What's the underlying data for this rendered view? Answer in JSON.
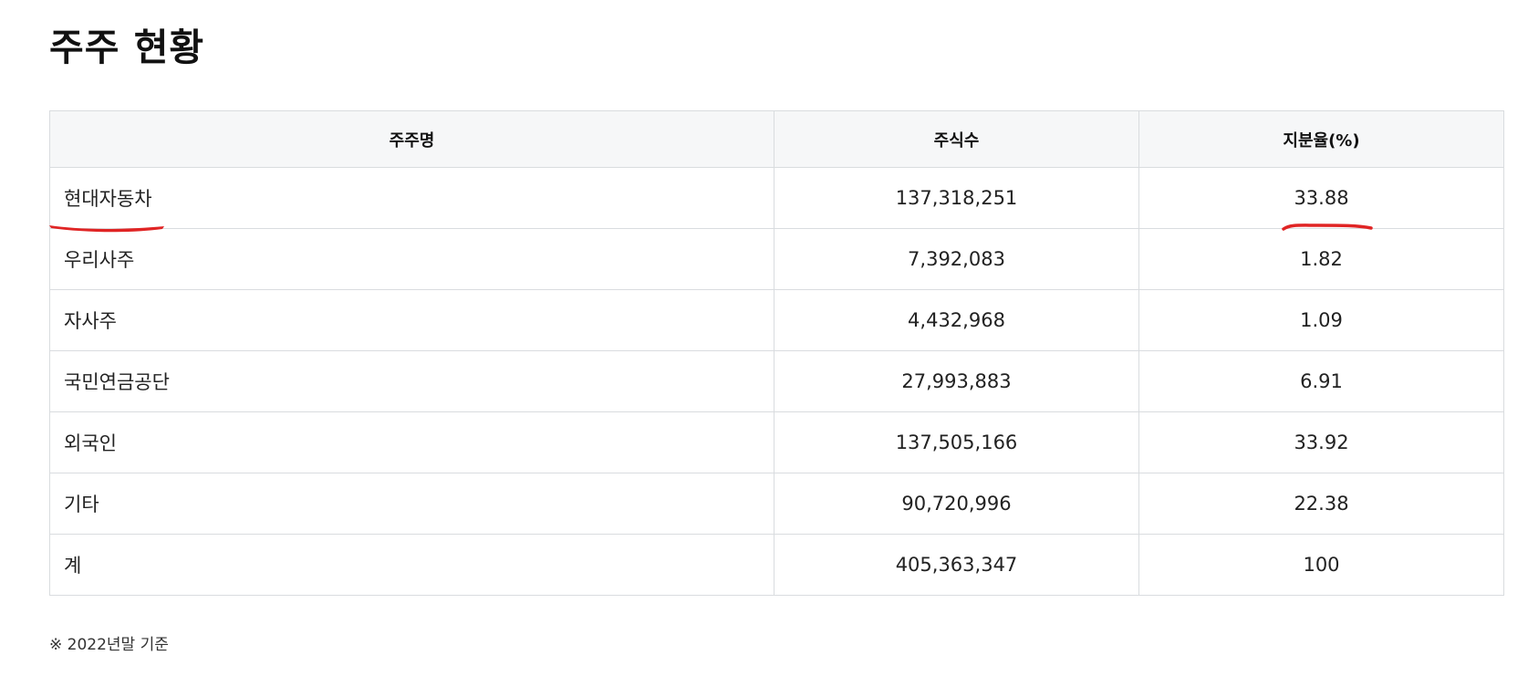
{
  "page": {
    "title": "주주 현황",
    "footnote": "※ 2022년말 기준",
    "annotation_color": "#e02424"
  },
  "table": {
    "headers": [
      "주주명",
      "주식수",
      "지분율(%)"
    ],
    "rows": [
      {
        "name": "현대자동차",
        "shares": "137,318,251",
        "percent": "33.88",
        "highlighted": true
      },
      {
        "name": "우리사주",
        "shares": "7,392,083",
        "percent": "1.82"
      },
      {
        "name": "자사주",
        "shares": "4,432,968",
        "percent": "1.09"
      },
      {
        "name": "국민연금공단",
        "shares": "27,993,883",
        "percent": "6.91"
      },
      {
        "name": "외국인",
        "shares": "137,505,166",
        "percent": "33.92"
      },
      {
        "name": "기타",
        "shares": "90,720,996",
        "percent": "22.38"
      },
      {
        "name": "계",
        "shares": "405,363,347",
        "percent": "100"
      }
    ]
  }
}
